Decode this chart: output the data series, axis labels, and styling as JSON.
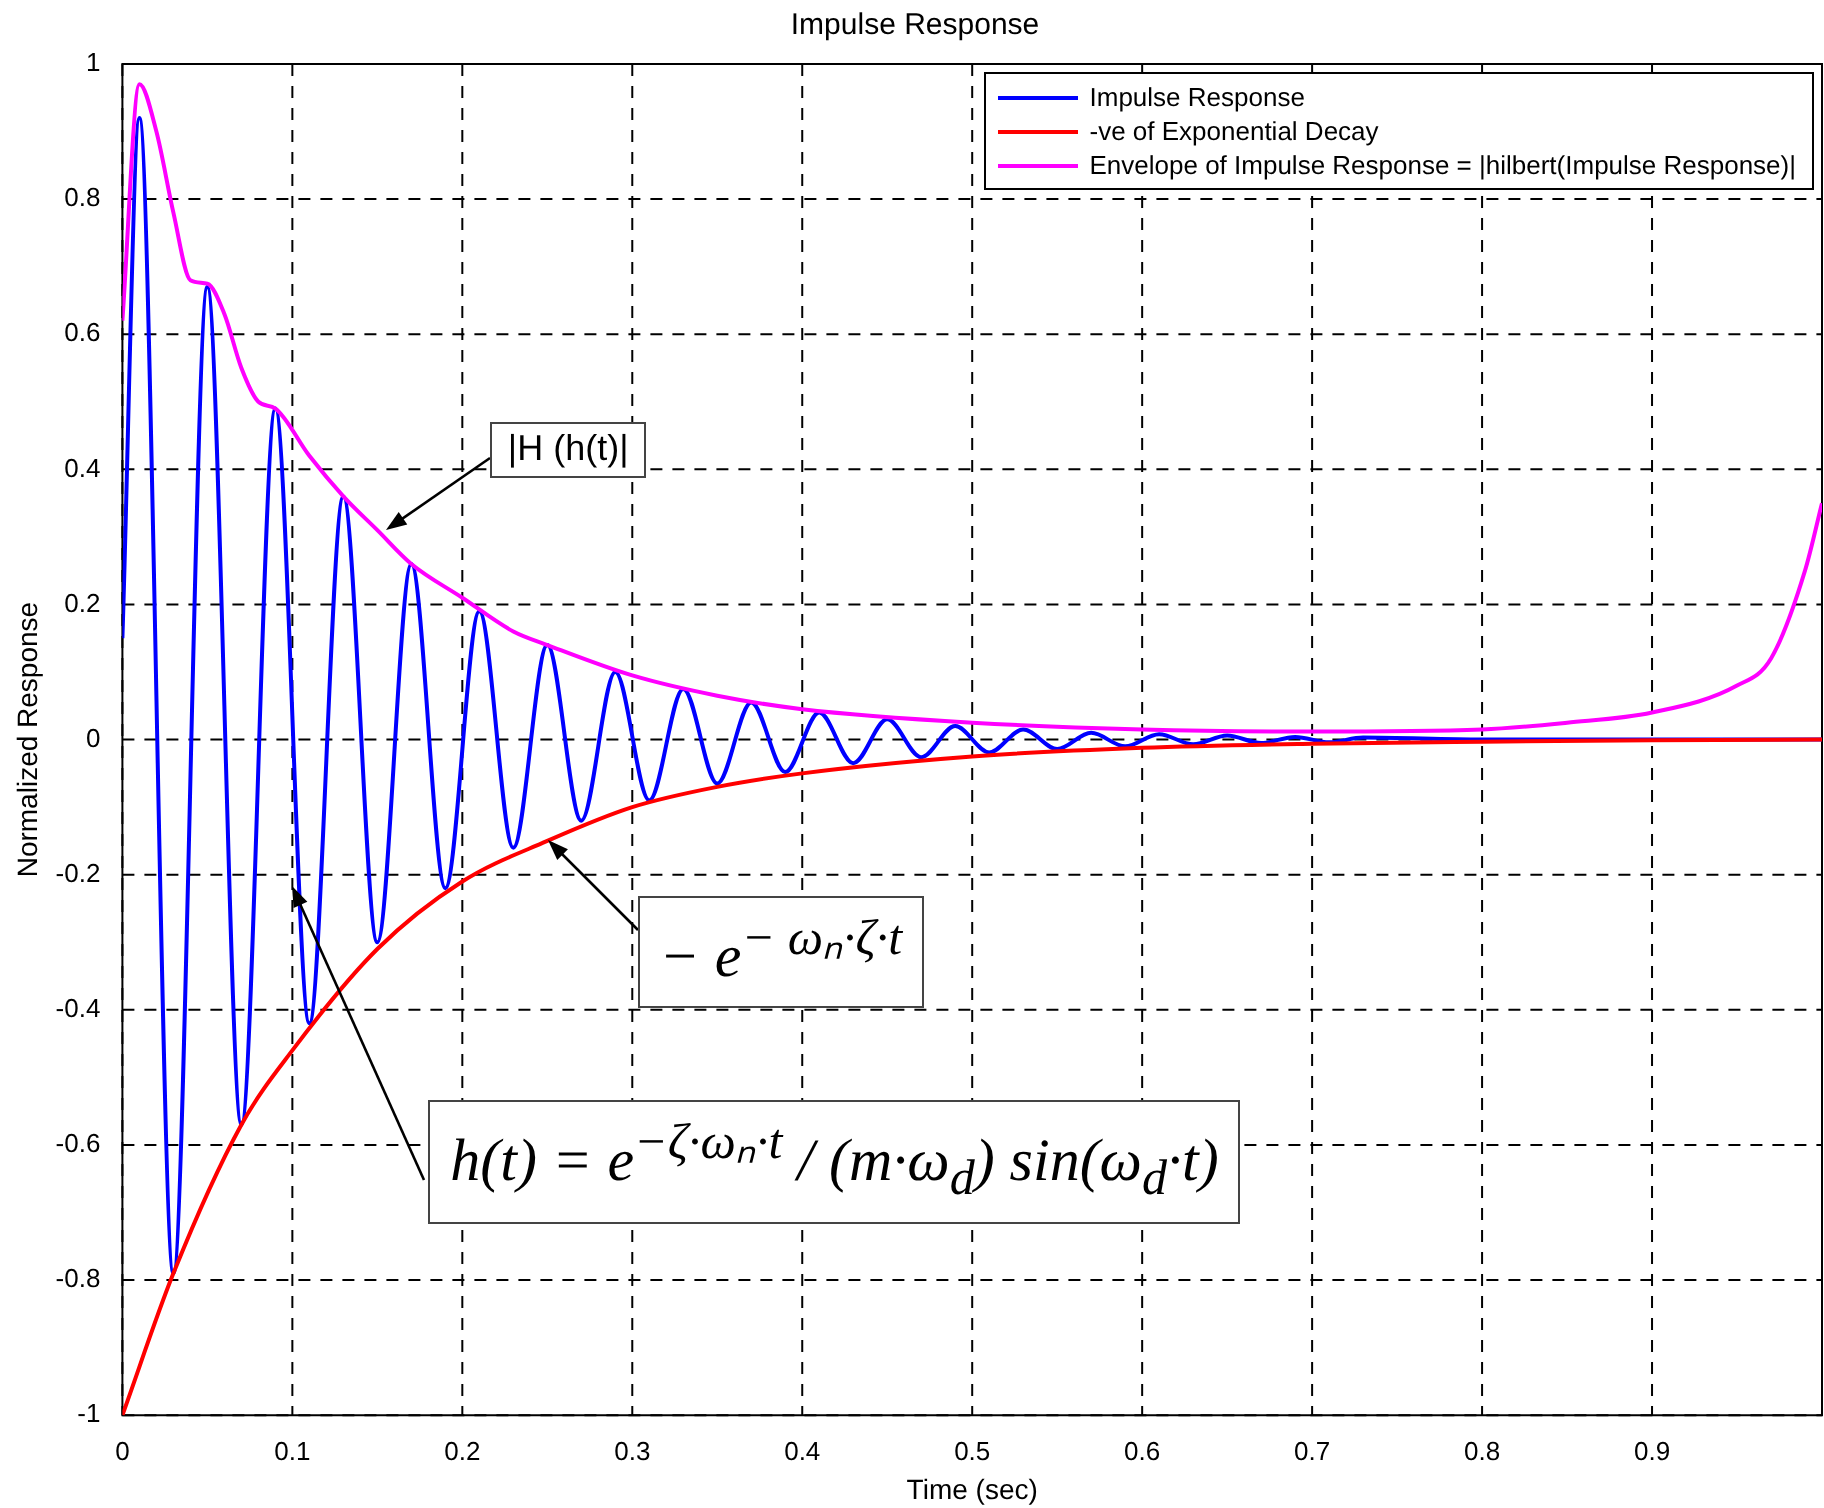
{
  "chart_data": {
    "type": "line",
    "title": "Impulse Response",
    "xlabel": "Time (sec)",
    "ylabel": "Normalized Response",
    "xlim": [
      0,
      1
    ],
    "ylim": [
      -1,
      1
    ],
    "xticks": [
      0,
      0.1,
      0.2,
      0.3,
      0.4,
      0.5,
      0.6,
      0.7,
      0.8,
      0.9
    ],
    "yticks": [
      -1,
      -0.8,
      -0.6,
      -0.4,
      -0.2,
      0,
      0.2,
      0.4,
      0.6,
      0.8,
      1
    ],
    "grid": true,
    "legend": "top right",
    "line_style": "solid",
    "series": [
      {
        "name": "Impulse Response",
        "color": "#0000ff",
        "x": [
          0,
          0.01,
          0.03,
          0.05,
          0.07,
          0.09,
          0.11,
          0.13,
          0.15,
          0.17,
          0.19,
          0.21,
          0.23,
          0.25,
          0.27,
          0.29,
          0.31,
          0.33,
          0.35,
          0.37,
          0.39,
          0.41,
          0.43,
          0.45,
          0.47,
          0.49,
          0.51,
          0.53,
          0.55,
          0.57,
          0.59,
          0.61,
          0.63,
          0.65,
          0.67,
          0.69,
          0.71,
          0.73,
          0.8,
          0.9,
          1
        ],
        "values": [
          0.15,
          0.92,
          -0.79,
          0.67,
          -0.57,
          0.49,
          -0.42,
          0.36,
          -0.3,
          0.26,
          -0.22,
          0.19,
          -0.16,
          0.14,
          -0.12,
          0.1,
          -0.09,
          0.075,
          -0.065,
          0.055,
          -0.048,
          0.04,
          -0.035,
          0.03,
          -0.026,
          0.02,
          -0.019,
          0.015,
          -0.014,
          0.01,
          -0.01,
          0.008,
          -0.007,
          0.006,
          -0.005,
          0.004,
          -0.004,
          0.003,
          0,
          0,
          0
        ]
      },
      {
        "name": "-ve of Exponential Decay",
        "color": "#ff0000",
        "x": [
          0,
          0.03,
          0.07,
          0.1,
          0.15,
          0.2,
          0.25,
          0.3,
          0.35,
          0.4,
          0.5,
          0.6,
          0.7,
          0.8,
          0.9,
          1
        ],
        "values": [
          -1,
          -0.79,
          -0.57,
          -0.46,
          -0.31,
          -0.21,
          -0.15,
          -0.1,
          -0.07,
          -0.05,
          -0.025,
          -0.012,
          -0.006,
          -0.003,
          -0.001,
          0
        ]
      },
      {
        "name": "Envelope of Impulse Response = |hilbert(Impulse Response)|",
        "color": "#ff00ff",
        "x": [
          0,
          0.01,
          0.02,
          0.03,
          0.04,
          0.05,
          0.06,
          0.07,
          0.08,
          0.09,
          0.11,
          0.13,
          0.15,
          0.17,
          0.2,
          0.23,
          0.25,
          0.3,
          0.35,
          0.4,
          0.5,
          0.6,
          0.7,
          0.8,
          0.85,
          0.9,
          0.95,
          0.97,
          0.99,
          1
        ],
        "values": [
          0.62,
          0.97,
          0.9,
          0.78,
          0.68,
          0.675,
          0.63,
          0.55,
          0.5,
          0.49,
          0.42,
          0.36,
          0.31,
          0.26,
          0.21,
          0.16,
          0.14,
          0.095,
          0.065,
          0.045,
          0.025,
          0.015,
          0.012,
          0.015,
          0.025,
          0.04,
          0.08,
          0.12,
          0.25,
          0.35
        ]
      }
    ],
    "annotations": [
      {
        "text": "|H (h(t)|",
        "x": 0.155,
        "y": 0.31
      },
      {
        "text": "− e$^{− ωₙ·ζ·t}$",
        "x": 0.25,
        "y": -0.15
      },
      {
        "text": "h(t) = e$^{−ζ·ωₙ·t}$ / (m·ω$_{d}$) sin(ω$_{d}$·t)",
        "x": 0.1,
        "y": -0.216
      }
    ]
  }
}
